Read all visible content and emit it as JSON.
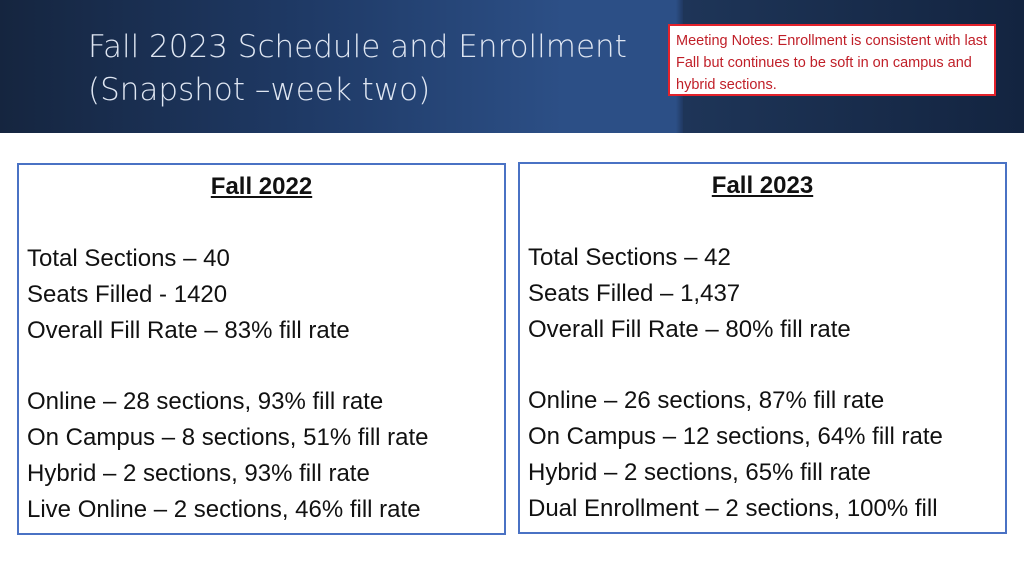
{
  "header": {
    "title_line1": "Fall 2023 Schedule and Enrollment",
    "title_line2": "(Snapshot –week two)",
    "notes": "Meeting Notes:  Enrollment is consistent with last Fall but continues to be soft in on campus and hybrid sections.",
    "accent_color": "#e3222b",
    "header_color": "#1f3a66"
  },
  "fall_2022": {
    "heading": "Fall 2022",
    "total_sections": "Total Sections – 40",
    "seats_filled": "Seats Filled - 1420",
    "overall_fill": "Overall Fill Rate – 83% fill rate",
    "online": "Online – 28 sections, 93% fill rate",
    "on_campus": "On Campus – 8 sections, 51% fill rate",
    "hybrid": "Hybrid – 2 sections, 93% fill rate",
    "live_online": "Live Online – 2 sections, 46% fill rate"
  },
  "fall_2023": {
    "heading": "Fall 2023",
    "total_sections": "Total Sections –  42",
    "seats_filled": "Seats Filled – 1,437",
    "overall_fill": "Overall Fill Rate – 80% fill rate",
    "online": "Online – 26 sections, 87% fill rate",
    "on_campus": "On Campus – 12 sections, 64% fill rate",
    "hybrid": "Hybrid – 2 sections, 65% fill rate",
    "dual_enrollment": "Dual Enrollment – 2 sections, 100% fill"
  }
}
